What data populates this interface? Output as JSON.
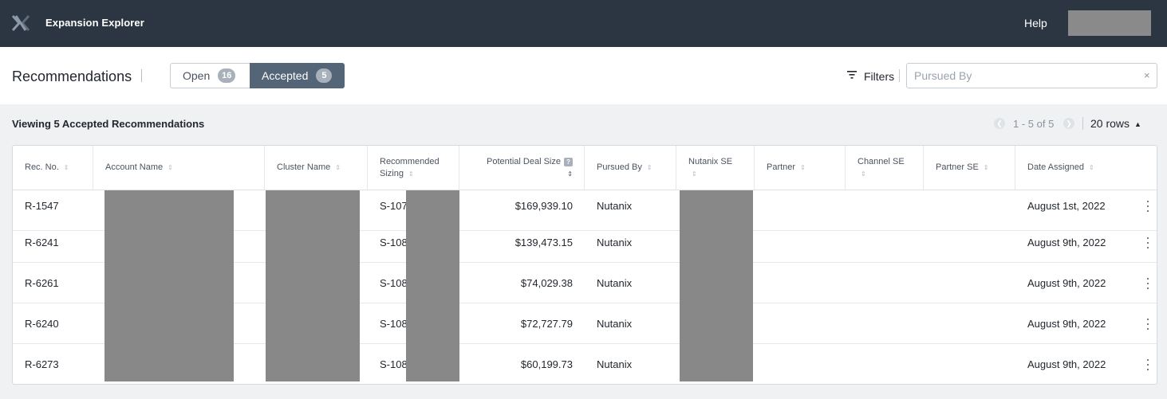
{
  "app": {
    "title": "Expansion Explorer",
    "help_label": "Help"
  },
  "header": {
    "title": "Recommendations",
    "tabs": [
      {
        "label": "Open",
        "count": "16"
      },
      {
        "label": "Accepted",
        "count": "5"
      }
    ],
    "filters_label": "Filters",
    "pursued_by": {
      "placeholder": "Pursued By",
      "value": ""
    },
    "clear_glyph": "×"
  },
  "summary": {
    "viewing": "Viewing 5 Accepted Recommendations",
    "range": "1 - 5 of 5",
    "rows_label": "20 rows"
  },
  "columns": [
    {
      "label": "Rec. No."
    },
    {
      "label": "Account Name"
    },
    {
      "label": "Cluster Name"
    },
    {
      "label": "Recommended Sizing"
    },
    {
      "label": "Potential Deal Size",
      "help": "?"
    },
    {
      "label": "Pursued By"
    },
    {
      "label": "Nutanix SE"
    },
    {
      "label": "Partner"
    },
    {
      "label": "Channel SE"
    },
    {
      "label": "Partner SE"
    },
    {
      "label": "Date Assigned"
    }
  ],
  "rows": [
    {
      "rec_no": "R-1547",
      "sizing": "S-107",
      "deal_size": "$169,939.10",
      "pursued_by": "Nutanix",
      "date": "August 1st, 2022"
    },
    {
      "rec_no": "R-6241",
      "sizing": "S-108",
      "deal_size": "$139,473.15",
      "pursued_by": "Nutanix",
      "date": "August 9th, 2022"
    },
    {
      "rec_no": "R-6261",
      "sizing": "S-108",
      "deal_size": "$74,029.38",
      "pursued_by": "Nutanix",
      "date": "August 9th, 2022"
    },
    {
      "rec_no": "R-6240",
      "sizing": "S-108",
      "deal_size": "$72,727.79",
      "pursued_by": "Nutanix",
      "date": "August 9th, 2022"
    },
    {
      "rec_no": "R-6273",
      "sizing": "S-108",
      "deal_size": "$60,199.73",
      "pursued_by": "Nutanix",
      "date": "August 9th, 2022"
    }
  ],
  "colors": {
    "topbar": "#2c3642",
    "accent": "#556578",
    "redaction": "#888888"
  }
}
